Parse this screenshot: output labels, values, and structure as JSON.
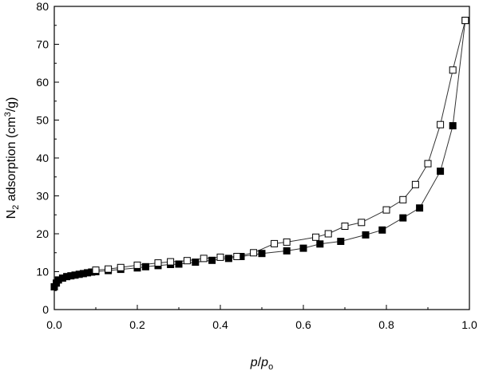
{
  "chart_data": {
    "type": "scatter",
    "title": "",
    "xlabel": {
      "p": "p",
      "slash": "/",
      "p2": "p",
      "sub": "o"
    },
    "ylabel": {
      "pre": "N",
      "sub": "2",
      "mid": " adsorption (cm",
      "sup": "3",
      "post": "/g)"
    },
    "xlim": [
      0.0,
      1.0
    ],
    "ylim": [
      0,
      80
    ],
    "xticks": [
      "0.0",
      "0.2",
      "0.4",
      "0.6",
      "0.8",
      "1.0"
    ],
    "yticks": [
      "0",
      "10",
      "20",
      "30",
      "40",
      "50",
      "60",
      "70",
      "80"
    ],
    "grid": false,
    "legend": "none",
    "colors": {
      "line": "#333333",
      "marker": "#000000",
      "fill": "#ffffff"
    },
    "series": [
      {
        "marker": "filled-square",
        "x": [
          0.0,
          0.005,
          0.01,
          0.02,
          0.03,
          0.04,
          0.05,
          0.06,
          0.07,
          0.08,
          0.09,
          0.1,
          0.13,
          0.16,
          0.2,
          0.22,
          0.25,
          0.28,
          0.3,
          0.34,
          0.38,
          0.42,
          0.45,
          0.5,
          0.56,
          0.6,
          0.64,
          0.69,
          0.75,
          0.79,
          0.84,
          0.88,
          0.93,
          0.96,
          0.99
        ],
        "y": [
          6.0,
          7.0,
          7.8,
          8.3,
          8.7,
          8.9,
          9.1,
          9.3,
          9.5,
          9.7,
          9.9,
          10.0,
          10.3,
          10.6,
          11.0,
          11.3,
          11.6,
          11.9,
          12.0,
          12.5,
          13.0,
          13.5,
          14.0,
          14.8,
          15.5,
          16.2,
          17.3,
          18.0,
          19.7,
          21.0,
          24.2,
          26.8,
          36.5,
          48.5,
          76.3
        ]
      },
      {
        "marker": "open-square",
        "x": [
          0.99,
          0.96,
          0.93,
          0.9,
          0.87,
          0.84,
          0.8,
          0.74,
          0.7,
          0.66,
          0.63,
          0.56,
          0.53,
          0.48,
          0.44,
          0.4,
          0.36,
          0.32,
          0.28,
          0.25,
          0.2,
          0.16,
          0.13,
          0.1
        ],
        "y": [
          76.3,
          63.2,
          48.8,
          38.5,
          33.0,
          29.0,
          26.3,
          23.0,
          22.0,
          20.0,
          19.1,
          17.8,
          17.4,
          15.0,
          14.0,
          13.8,
          13.5,
          12.9,
          12.6,
          12.3,
          11.7,
          11.1,
          10.7,
          10.4
        ]
      }
    ]
  }
}
